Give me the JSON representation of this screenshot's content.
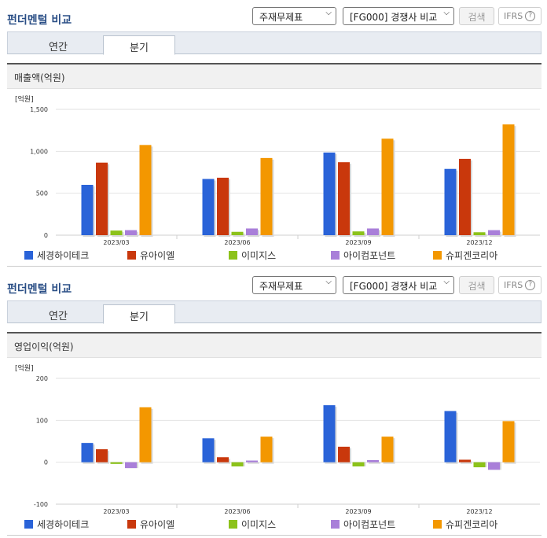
{
  "colors": {
    "title": "#2b4f86",
    "series": [
      "#2a63d8",
      "#c9380c",
      "#8cc21a",
      "#a97fd9",
      "#f39700"
    ]
  },
  "sections": [
    {
      "title": "펀더멘털 비교",
      "select_statement": "주재무제표",
      "select_compare": "[FG000] 경쟁사 비교",
      "search_label": "검색",
      "ifrs_label": "IFRS",
      "ifrs_help": "?",
      "tab_annual": "연간",
      "tab_quarter": "분기",
      "chart_title": "매출액(억원)",
      "unit_label": "[억원]",
      "legend": [
        "세경하이테크",
        "유아이엘",
        "이미지스",
        "아이컴포넌트",
        "슈피겐코리아"
      ]
    },
    {
      "title": "펀더멘털 비교",
      "select_statement": "주재무제표",
      "select_compare": "[FG000] 경쟁사 비교",
      "search_label": "검색",
      "ifrs_label": "IFRS",
      "ifrs_help": "?",
      "tab_annual": "연간",
      "tab_quarter": "분기",
      "chart_title": "영업이익(억원)",
      "unit_label": "[억원]",
      "legend": [
        "세경하이테크",
        "유아이엘",
        "이미지스",
        "아이컴포넌트",
        "슈피겐코리아"
      ]
    }
  ],
  "chart_data": [
    {
      "type": "bar",
      "title": "매출액(억원)",
      "ylabel": "[억원]",
      "categories": [
        "2023/03",
        "2023/06",
        "2023/09",
        "2023/12"
      ],
      "ylim": [
        0,
        1500
      ],
      "yticks": [
        0,
        500,
        1000,
        1500
      ],
      "ytick_labels": [
        "0",
        "500",
        "1,000",
        "1,500"
      ],
      "grid": true,
      "legend": "bottom",
      "series": [
        {
          "name": "세경하이테크",
          "values": [
            600,
            670,
            985,
            790
          ]
        },
        {
          "name": "유아이엘",
          "values": [
            865,
            685,
            870,
            910
          ]
        },
        {
          "name": "이미지스",
          "values": [
            55,
            40,
            45,
            35
          ]
        },
        {
          "name": "아이컴포넌트",
          "values": [
            60,
            80,
            80,
            60
          ]
        },
        {
          "name": "슈피겐코리아",
          "values": [
            1075,
            920,
            1150,
            1320
          ]
        }
      ]
    },
    {
      "type": "bar",
      "title": "영업이익(억원)",
      "ylabel": "[억원]",
      "categories": [
        "2023/03",
        "2023/06",
        "2023/09",
        "2023/12"
      ],
      "ylim": [
        -100,
        200
      ],
      "yticks": [
        -100,
        0,
        100,
        200
      ],
      "ytick_labels": [
        "-100",
        "0",
        "100",
        "200"
      ],
      "grid": true,
      "legend": "bottom",
      "series": [
        {
          "name": "세경하이테크",
          "values": [
            46,
            57,
            136,
            122
          ]
        },
        {
          "name": "유아이엘",
          "values": [
            31,
            12,
            37,
            6
          ]
        },
        {
          "name": "이미지스",
          "values": [
            -4,
            -10,
            -10,
            -12
          ]
        },
        {
          "name": "아이컴포넌트",
          "values": [
            -14,
            4,
            5,
            -18
          ]
        },
        {
          "name": "슈피겐코리아",
          "values": [
            131,
            61,
            61,
            98
          ]
        }
      ]
    }
  ]
}
